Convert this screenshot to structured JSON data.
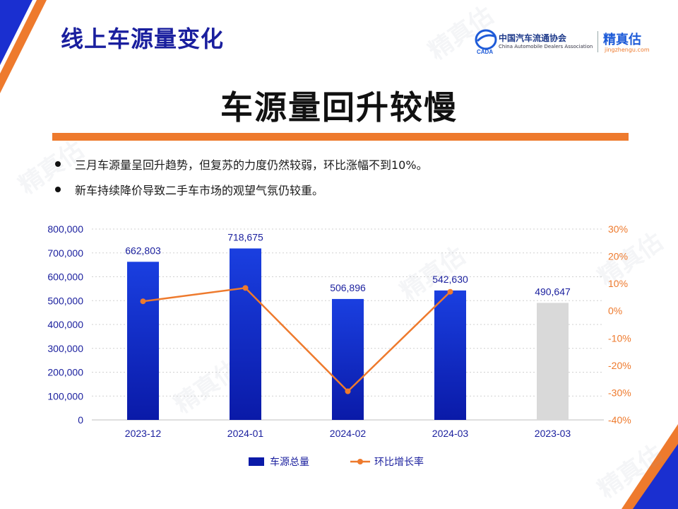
{
  "slide": {
    "title": "线上车源量变化",
    "headline": "车源量回升较慢",
    "bullets": [
      "三月车源量呈回升趋势，但复苏的力度仍然较弱，环比涨幅不到10%。",
      "新车持续降价导致二手车市场的观望气氛仍较重。"
    ]
  },
  "logos": {
    "cada_cn": "中国汽车流通协会",
    "cada_en": "China Automobile Dealers Association",
    "cada_mark": "CADA",
    "jzg_cn": "精真估",
    "jzg_en": "jingzhengu.com"
  },
  "watermark": {
    "text": "精真估"
  },
  "colors": {
    "accent_orange": "#ee7a2d",
    "title_blue": "#1a1f9e",
    "bar_blue_top": "#1a3fe0",
    "bar_blue_bottom": "#0a1aa8",
    "bar_gray": "#d9d9d9"
  },
  "chart_data": {
    "type": "bar",
    "categories": [
      "2023-12",
      "2024-01",
      "2024-02",
      "2024-03",
      "2023-03"
    ],
    "series": [
      {
        "name": "车源总量",
        "type": "bar",
        "values": [
          662803,
          718675,
          506896,
          542630,
          490647
        ],
        "labels": [
          "662,803",
          "718,675",
          "506,896",
          "542,630",
          "490,647"
        ],
        "highlight_gray_index": 4
      },
      {
        "name": "环比增长率",
        "type": "line",
        "axis": "right",
        "values": [
          3.5,
          8.4,
          -29.5,
          7.0,
          null
        ]
      }
    ],
    "y_left": {
      "range": [
        0,
        800000
      ],
      "ticks": [
        "0",
        "100,000",
        "200,000",
        "300,000",
        "400,000",
        "500,000",
        "600,000",
        "700,000",
        "800,000"
      ]
    },
    "y_right": {
      "range": [
        -40,
        30
      ],
      "ticks": [
        "-40%",
        "-30%",
        "-20%",
        "-10%",
        "0%",
        "10%",
        "20%",
        "30%"
      ]
    },
    "grid": true,
    "legend_position": "bottom"
  }
}
